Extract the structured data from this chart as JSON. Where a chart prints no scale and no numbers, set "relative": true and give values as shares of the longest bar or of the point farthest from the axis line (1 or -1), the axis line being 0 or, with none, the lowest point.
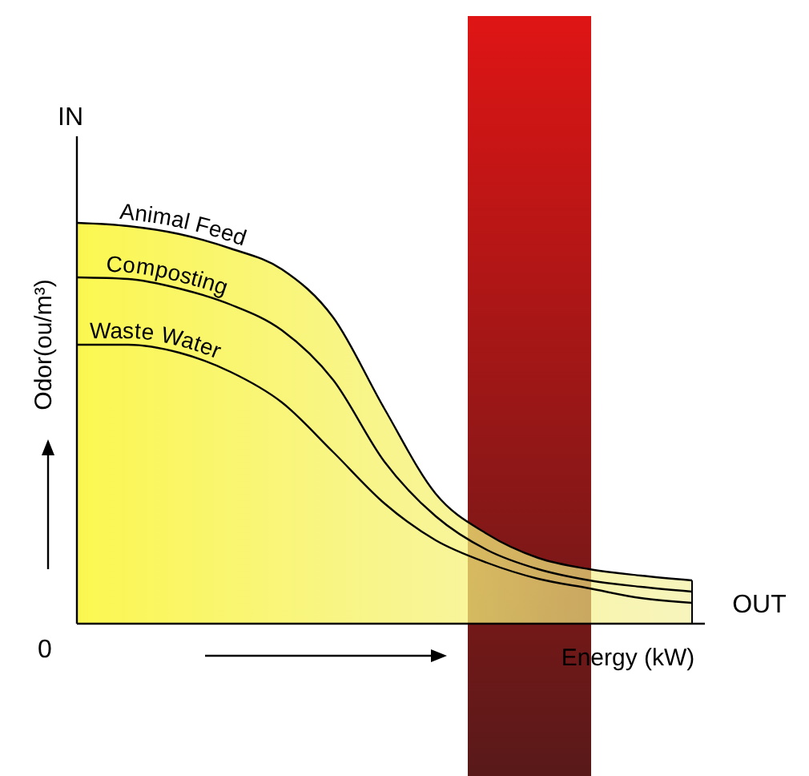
{
  "chart_data": {
    "type": "line",
    "relative": true,
    "xlabel": "Energy (kW)",
    "ylabel": "Odor(ou/m³)",
    "annotations": [
      "IN",
      "0",
      "OUT"
    ],
    "categories": [
      null,
      null,
      null,
      null,
      null,
      null,
      null,
      null,
      null,
      null,
      null,
      null,
      null
    ],
    "series": [
      {
        "name": "Animal Feed",
        "type": "area",
        "color": "#f2ee90",
        "values": [
          1.0,
          0.992,
          0.972,
          0.936,
          0.884,
          0.764,
          0.536,
          0.324,
          0.224,
          0.164,
          0.136,
          0.12,
          0.108
        ]
      },
      {
        "name": "Composting",
        "color": "#000000",
        "values": [
          0.864,
          0.86,
          0.836,
          0.796,
          0.732,
          0.608,
          0.404,
          0.268,
          0.184,
          0.136,
          0.108,
          0.092,
          0.08
        ]
      },
      {
        "name": "Waste Water",
        "color": "#000000",
        "values": [
          0.696,
          0.696,
          0.676,
          0.628,
          0.552,
          0.428,
          0.3,
          0.208,
          0.152,
          0.112,
          0.088,
          0.064,
          0.052
        ]
      }
    ]
  }
}
